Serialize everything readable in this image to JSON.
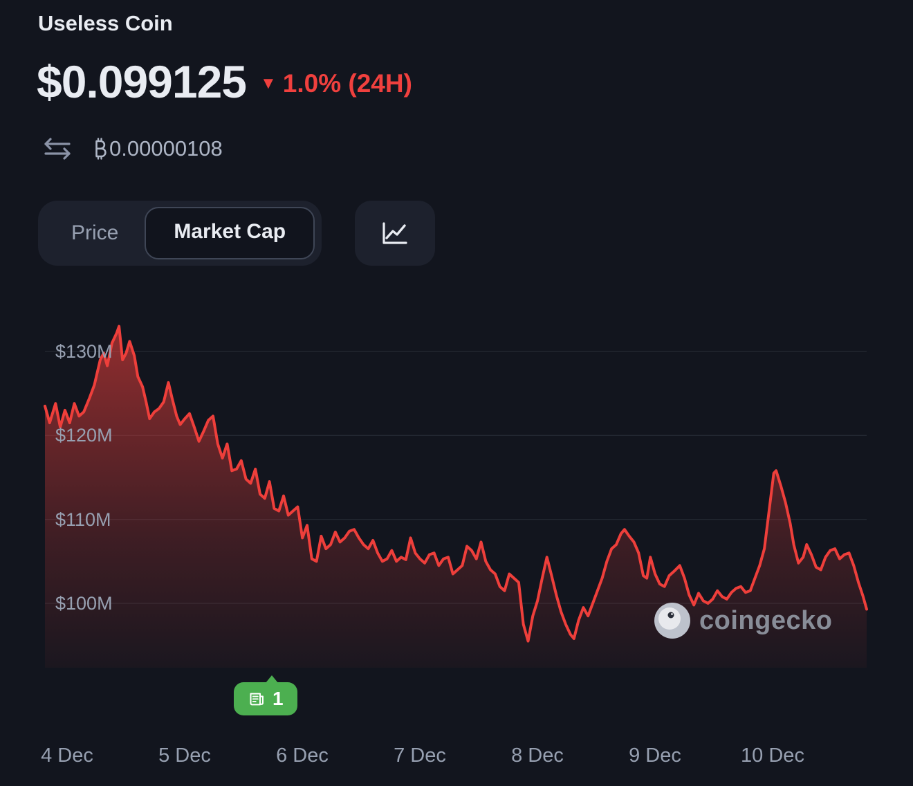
{
  "header": {
    "coin_name": "Useless Coin",
    "price": "$0.099125",
    "down_icon": "▼",
    "change": "1.0% (24H)",
    "btc_symbol": "₿",
    "btc_amount": "0.00000108"
  },
  "controls": {
    "price_label": "Price",
    "market_cap_label": "Market Cap",
    "active_toggle": "Market Cap"
  },
  "news_badge": {
    "count": "1"
  },
  "watermark": {
    "text": "coingecko"
  },
  "icons": {
    "swap": "swap-arrows",
    "bitcoin": "bitcoin-symbol",
    "chart_style": "line-chart",
    "news": "newspaper",
    "logo": "coingecko-gecko"
  },
  "colors": {
    "bg": "#12151e",
    "text-primary": "#e9ecf2",
    "text-secondary": "#97a0b1",
    "red": "#f0403e",
    "chart-line": "#ee3f3b",
    "green": "#4caf50",
    "control-bg": "#1d212d",
    "pill-bg": "#11141d",
    "pill-border": "#3f4656",
    "grid": "rgba(151,160,177,0.18)"
  },
  "chart_data": {
    "type": "area",
    "series_name": "Market Cap",
    "y_unit": "million USD",
    "x_domain": [
      3.81,
      10.8
    ],
    "ylim": [
      92,
      133.5
    ],
    "grid": "horizontal",
    "legend": "none",
    "y_ticks": [
      {
        "label": "$130M",
        "value": 130
      },
      {
        "label": "$120M",
        "value": 120
      },
      {
        "label": "$110M",
        "value": 110
      },
      {
        "label": "$100M",
        "value": 100
      }
    ],
    "x_ticks": [
      {
        "label": "4 Dec",
        "value": 4
      },
      {
        "label": "5 Dec",
        "value": 5
      },
      {
        "label": "6 Dec",
        "value": 6
      },
      {
        "label": "7 Dec",
        "value": 7
      },
      {
        "label": "8 Dec",
        "value": 8
      },
      {
        "label": "9 Dec",
        "value": 9
      },
      {
        "label": "10 Dec",
        "value": 10
      }
    ],
    "annotations": [
      {
        "type": "news",
        "label": "1",
        "x_day": 5.8
      }
    ],
    "points": [
      [
        3.81,
        123.5
      ],
      [
        3.85,
        121.5
      ],
      [
        3.9,
        123.8
      ],
      [
        3.94,
        121.0
      ],
      [
        3.98,
        123.0
      ],
      [
        4.02,
        121.5
      ],
      [
        4.06,
        123.8
      ],
      [
        4.1,
        122.3
      ],
      [
        4.14,
        122.8
      ],
      [
        4.19,
        124.5
      ],
      [
        4.23,
        126.0
      ],
      [
        4.28,
        129.0
      ],
      [
        4.31,
        129.8
      ],
      [
        4.34,
        128.3
      ],
      [
        4.38,
        131.0
      ],
      [
        4.42,
        132.2
      ],
      [
        4.44,
        133.0
      ],
      [
        4.47,
        129.0
      ],
      [
        4.5,
        129.8
      ],
      [
        4.53,
        131.2
      ],
      [
        4.57,
        129.5
      ],
      [
        4.6,
        127.0
      ],
      [
        4.64,
        125.8
      ],
      [
        4.67,
        124.0
      ],
      [
        4.7,
        122.0
      ],
      [
        4.74,
        122.8
      ],
      [
        4.78,
        123.2
      ],
      [
        4.82,
        124.0
      ],
      [
        4.86,
        126.3
      ],
      [
        4.89,
        124.5
      ],
      [
        4.93,
        122.3
      ],
      [
        4.96,
        121.3
      ],
      [
        5.0,
        122.0
      ],
      [
        5.04,
        122.6
      ],
      [
        5.08,
        121.0
      ],
      [
        5.12,
        119.3
      ],
      [
        5.16,
        120.5
      ],
      [
        5.2,
        121.8
      ],
      [
        5.24,
        122.3
      ],
      [
        5.28,
        119.0
      ],
      [
        5.32,
        117.3
      ],
      [
        5.36,
        119.0
      ],
      [
        5.4,
        115.8
      ],
      [
        5.44,
        116.0
      ],
      [
        5.48,
        117.0
      ],
      [
        5.52,
        114.8
      ],
      [
        5.56,
        114.3
      ],
      [
        5.6,
        116.0
      ],
      [
        5.64,
        113.0
      ],
      [
        5.68,
        112.5
      ],
      [
        5.72,
        114.5
      ],
      [
        5.76,
        111.3
      ],
      [
        5.8,
        111.0
      ],
      [
        5.84,
        112.8
      ],
      [
        5.88,
        110.5
      ],
      [
        5.92,
        111.0
      ],
      [
        5.96,
        111.5
      ],
      [
        6.0,
        107.8
      ],
      [
        6.04,
        109.3
      ],
      [
        6.08,
        105.3
      ],
      [
        6.12,
        105.0
      ],
      [
        6.16,
        108.0
      ],
      [
        6.2,
        106.5
      ],
      [
        6.24,
        107.0
      ],
      [
        6.28,
        108.5
      ],
      [
        6.32,
        107.3
      ],
      [
        6.36,
        107.8
      ],
      [
        6.4,
        108.6
      ],
      [
        6.44,
        108.8
      ],
      [
        6.48,
        107.8
      ],
      [
        6.52,
        107.0
      ],
      [
        6.56,
        106.5
      ],
      [
        6.6,
        107.5
      ],
      [
        6.64,
        106.0
      ],
      [
        6.68,
        105.0
      ],
      [
        6.72,
        105.3
      ],
      [
        6.76,
        106.3
      ],
      [
        6.8,
        105.0
      ],
      [
        6.84,
        105.5
      ],
      [
        6.88,
        105.2
      ],
      [
        6.92,
        107.8
      ],
      [
        6.96,
        106.0
      ],
      [
        7.0,
        105.3
      ],
      [
        7.04,
        104.8
      ],
      [
        7.08,
        105.8
      ],
      [
        7.12,
        106.0
      ],
      [
        7.16,
        104.5
      ],
      [
        7.2,
        105.3
      ],
      [
        7.24,
        105.5
      ],
      [
        7.28,
        103.5
      ],
      [
        7.32,
        104.0
      ],
      [
        7.36,
        104.5
      ],
      [
        7.4,
        106.8
      ],
      [
        7.44,
        106.3
      ],
      [
        7.48,
        105.3
      ],
      [
        7.52,
        107.3
      ],
      [
        7.56,
        105.0
      ],
      [
        7.6,
        104.0
      ],
      [
        7.64,
        103.5
      ],
      [
        7.68,
        102.0
      ],
      [
        7.72,
        101.5
      ],
      [
        7.76,
        103.5
      ],
      [
        7.8,
        103.0
      ],
      [
        7.84,
        102.5
      ],
      [
        7.88,
        97.5
      ],
      [
        7.92,
        95.5
      ],
      [
        7.96,
        98.5
      ],
      [
        8.0,
        100.3
      ],
      [
        8.04,
        103.0
      ],
      [
        8.08,
        105.5
      ],
      [
        8.12,
        103.3
      ],
      [
        8.16,
        101.0
      ],
      [
        8.2,
        99.0
      ],
      [
        8.24,
        97.5
      ],
      [
        8.28,
        96.3
      ],
      [
        8.31,
        95.8
      ],
      [
        8.35,
        98.0
      ],
      [
        8.39,
        99.5
      ],
      [
        8.43,
        98.5
      ],
      [
        8.47,
        100.0
      ],
      [
        8.51,
        101.5
      ],
      [
        8.55,
        103.0
      ],
      [
        8.59,
        105.0
      ],
      [
        8.63,
        106.5
      ],
      [
        8.67,
        107.0
      ],
      [
        8.71,
        108.3
      ],
      [
        8.74,
        108.8
      ],
      [
        8.78,
        108.0
      ],
      [
        8.82,
        107.3
      ],
      [
        8.86,
        106.0
      ],
      [
        8.9,
        103.3
      ],
      [
        8.93,
        103.0
      ],
      [
        8.96,
        105.5
      ],
      [
        9.0,
        103.5
      ],
      [
        9.04,
        102.3
      ],
      [
        9.08,
        102.0
      ],
      [
        9.12,
        103.3
      ],
      [
        9.16,
        103.8
      ],
      [
        9.21,
        104.5
      ],
      [
        9.25,
        103.0
      ],
      [
        9.29,
        101.0
      ],
      [
        9.33,
        99.8
      ],
      [
        9.37,
        101.2
      ],
      [
        9.41,
        100.3
      ],
      [
        9.45,
        100.0
      ],
      [
        9.49,
        100.5
      ],
      [
        9.53,
        101.5
      ],
      [
        9.57,
        100.8
      ],
      [
        9.61,
        100.5
      ],
      [
        9.65,
        101.3
      ],
      [
        9.69,
        101.8
      ],
      [
        9.73,
        102.0
      ],
      [
        9.77,
        101.3
      ],
      [
        9.81,
        101.5
      ],
      [
        9.85,
        103.0
      ],
      [
        9.89,
        104.5
      ],
      [
        9.93,
        106.5
      ],
      [
        9.97,
        111.0
      ],
      [
        10.01,
        115.5
      ],
      [
        10.03,
        115.8
      ],
      [
        10.07,
        114.0
      ],
      [
        10.11,
        112.0
      ],
      [
        10.15,
        109.5
      ],
      [
        10.18,
        107.0
      ],
      [
        10.22,
        104.8
      ],
      [
        10.26,
        105.5
      ],
      [
        10.29,
        107.0
      ],
      [
        10.33,
        105.8
      ],
      [
        10.37,
        104.3
      ],
      [
        10.41,
        104.0
      ],
      [
        10.45,
        105.5
      ],
      [
        10.49,
        106.3
      ],
      [
        10.53,
        106.5
      ],
      [
        10.57,
        105.3
      ],
      [
        10.61,
        105.8
      ],
      [
        10.65,
        106.0
      ],
      [
        10.69,
        104.5
      ],
      [
        10.73,
        102.5
      ],
      [
        10.77,
        100.8
      ],
      [
        10.8,
        99.3
      ]
    ]
  }
}
